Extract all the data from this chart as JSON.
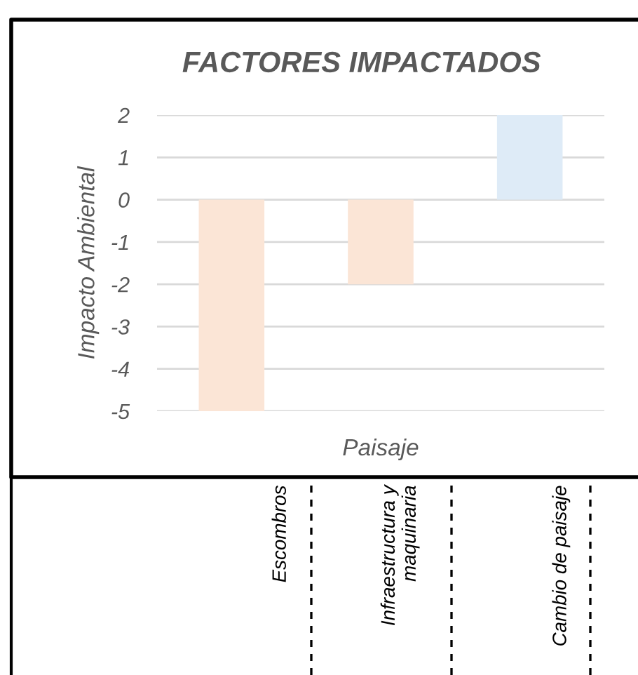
{
  "chart_data": {
    "type": "bar",
    "title": "FACTORES IMPACTADOS",
    "xlabel": "Paisaje",
    "ylabel": "Impacto Ambiental",
    "categories": [
      "Escombros",
      "Infraestructura y\nmaquinaria",
      "Cambio de paisaje"
    ],
    "values": [
      -5,
      -2,
      2
    ],
    "colors": [
      "#fbe5d6",
      "#fbe5d6",
      "#deebf7"
    ],
    "ylim": [
      -5,
      2
    ],
    "yticks": [
      -5,
      -4,
      -3,
      -2,
      -1,
      0,
      1,
      2
    ],
    "grid": "y"
  }
}
